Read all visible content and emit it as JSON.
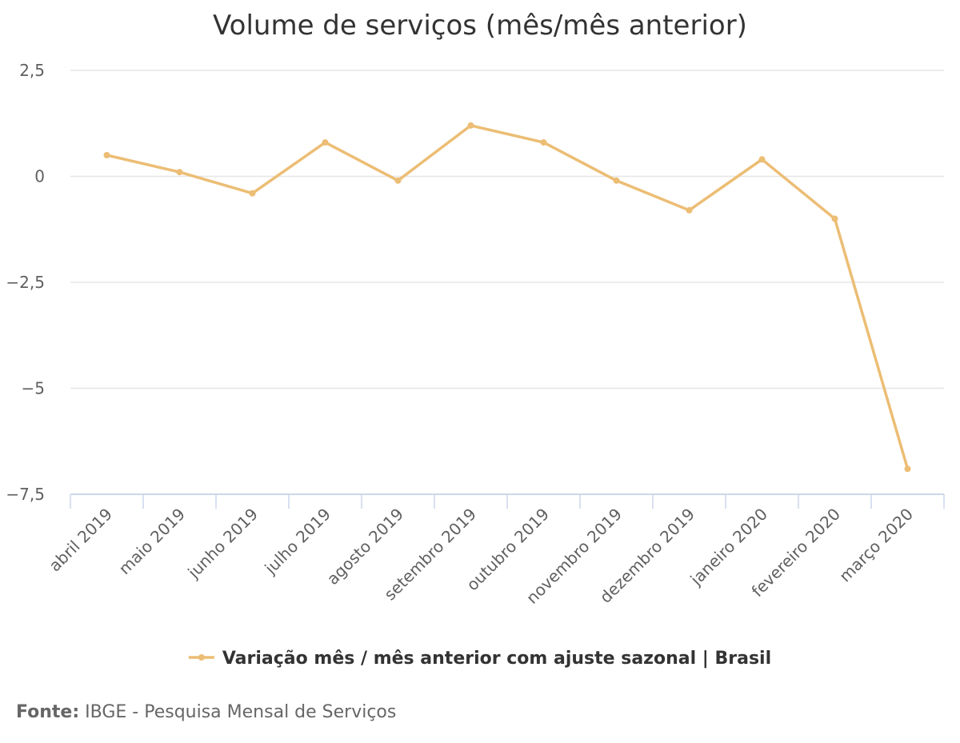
{
  "chart_data": {
    "type": "line",
    "title": "Volume de serviços (mês/mês anterior)",
    "categories": [
      "abril 2019",
      "maio 2019",
      "junho 2019",
      "julho 2019",
      "agosto 2019",
      "setembro 2019",
      "outubro 2019",
      "novembro 2019",
      "dezembro 2019",
      "janeiro 2020",
      "fevereiro 2020",
      "março 2020"
    ],
    "series": [
      {
        "name": "Variação mês / mês anterior com ajuste sazonal | Brasil",
        "color": "#ecbd74",
        "values": [
          0.5,
          0.1,
          -0.4,
          0.8,
          -0.1,
          1.2,
          0.8,
          -0.1,
          -0.8,
          0.4,
          -1.0,
          -6.9
        ]
      }
    ],
    "yticks": [
      2.5,
      0,
      -2.5,
      -5,
      -7.5
    ],
    "ytick_labels": [
      "2,5",
      "0",
      "−2,5",
      "−5",
      "−7,5"
    ],
    "ylim": [
      -7.5,
      2.5
    ],
    "grid": true,
    "legend": "bottom-center"
  },
  "source": {
    "label": "Fonte:",
    "text": "IBGE - Pesquisa Mensal de Serviços"
  }
}
